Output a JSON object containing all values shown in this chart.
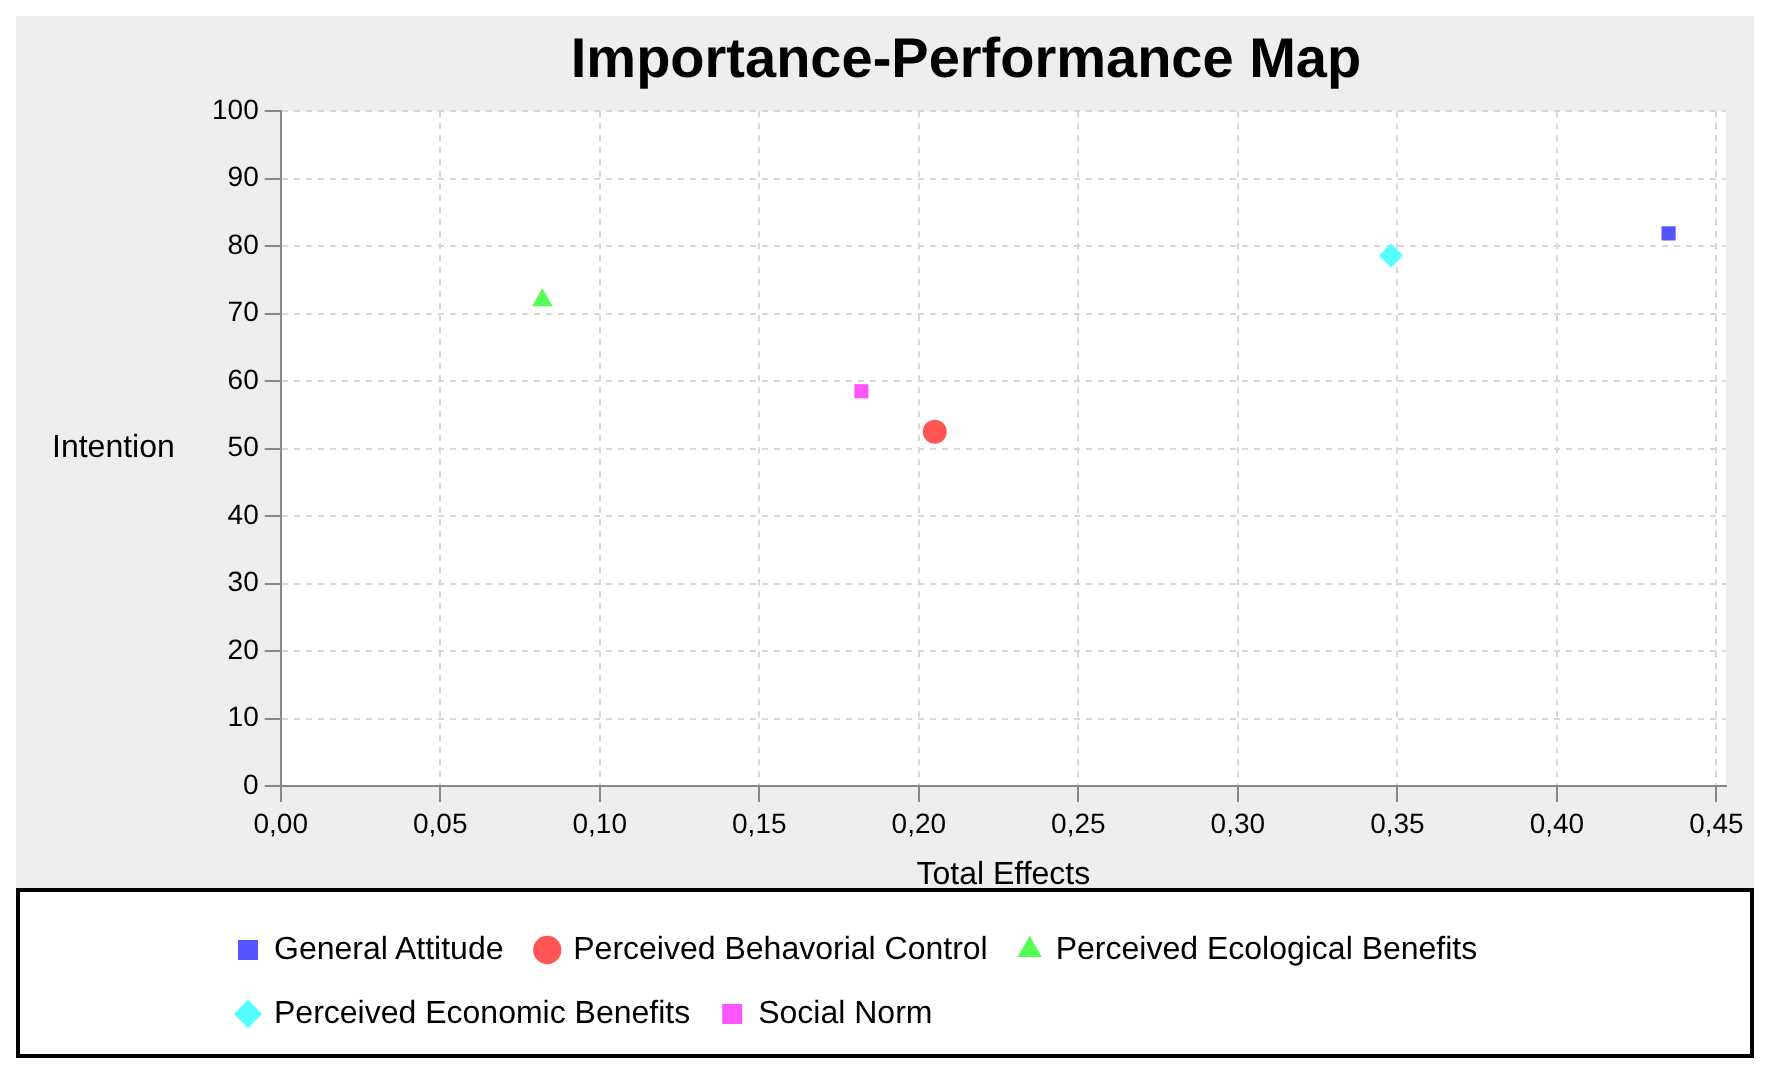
{
  "chart_data": {
    "type": "scatter",
    "title": "Importance-Performance Map",
    "xlabel": "Total Effects",
    "ylabel": "Intention",
    "xlim": [
      0,
      0.453
    ],
    "ylim": [
      0,
      100
    ],
    "xticks": [
      {
        "value": 0,
        "label": "0,00"
      },
      {
        "value": 0.05,
        "label": "0,05"
      },
      {
        "value": 0.1,
        "label": "0,10"
      },
      {
        "value": 0.15,
        "label": "0,15"
      },
      {
        "value": 0.2,
        "label": "0,20"
      },
      {
        "value": 0.25,
        "label": "0,25"
      },
      {
        "value": 0.3,
        "label": "0,30"
      },
      {
        "value": 0.35,
        "label": "0,35"
      },
      {
        "value": 0.4,
        "label": "0,40"
      },
      {
        "value": 0.45,
        "label": "0,45"
      }
    ],
    "yticks": [
      0,
      10,
      20,
      30,
      40,
      50,
      60,
      70,
      80,
      90,
      100
    ],
    "grid": true,
    "legend": "bottom",
    "series": [
      {
        "name": "General Attitude",
        "color": "#5555ff",
        "marker": "square",
        "x": [
          0.435
        ],
        "values": [
          81.9
        ]
      },
      {
        "name": "Perceived Behavorial Control",
        "color": "#ff5555",
        "marker": "circle",
        "x": [
          0.205
        ],
        "values": [
          52.5
        ]
      },
      {
        "name": "Perceived Ecological Benefits",
        "color": "#55ff55",
        "marker": "triangle",
        "x": [
          0.082
        ],
        "values": [
          72.0
        ]
      },
      {
        "name": "Perceived Economic Benefits",
        "color": "#55ffff",
        "marker": "diamond",
        "x": [
          0.348
        ],
        "values": [
          78.6
        ]
      },
      {
        "name": "Social Norm",
        "color": "#ff55ff",
        "marker": "square",
        "x": [
          0.182
        ],
        "values": [
          58.5
        ]
      }
    ]
  }
}
